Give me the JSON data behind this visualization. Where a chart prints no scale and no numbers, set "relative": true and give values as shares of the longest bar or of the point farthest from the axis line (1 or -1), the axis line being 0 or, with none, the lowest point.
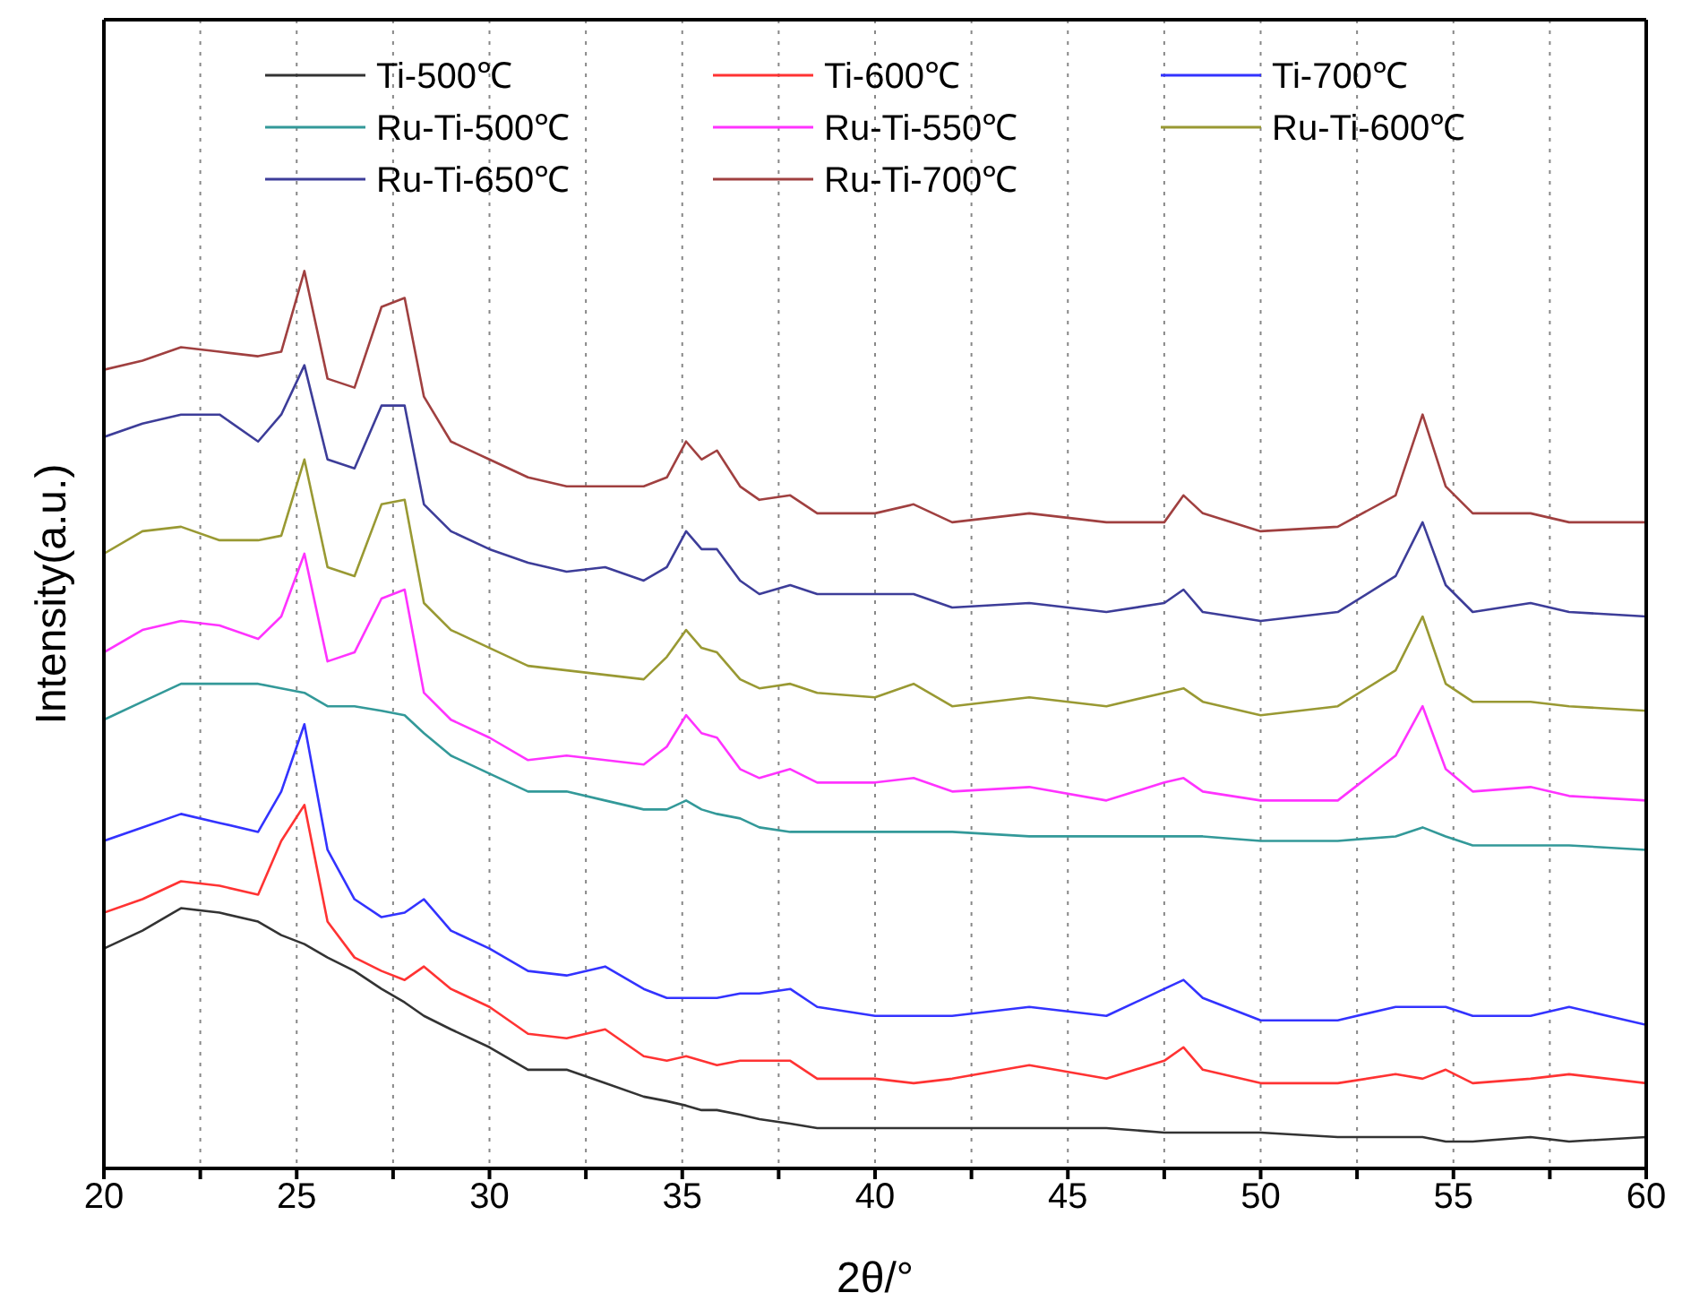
{
  "chart_data": {
    "type": "line",
    "relative": true,
    "xlabel": "2θ/°",
    "ylabel": "Intensity(a.u.)",
    "x": [
      20,
      21,
      22,
      23,
      24,
      24.6,
      25.2,
      25.8,
      26.5,
      27.2,
      27.8,
      28.3,
      29,
      30,
      31,
      32,
      33,
      34,
      34.6,
      35.1,
      35.5,
      35.9,
      36.5,
      37,
      37.8,
      38.5,
      40,
      41,
      42,
      44,
      46,
      47.5,
      48,
      48.5,
      50,
      52,
      53.5,
      54.2,
      54.8,
      55.5,
      57,
      58,
      60
    ],
    "xlim": [
      20,
      60
    ],
    "xticks": [
      20,
      {
        "value": 22.5,
        "label": null
      },
      25,
      {
        "value": 27.5,
        "label": null
      },
      30,
      {
        "value": 32.5,
        "label": null
      },
      35,
      {
        "value": 37.5,
        "label": null
      },
      40,
      {
        "value": 42.5,
        "label": null
      },
      45,
      {
        "value": 47.5,
        "label": null
      },
      50,
      {
        "value": 52.5,
        "label": null
      },
      55,
      {
        "value": 57.5,
        "label": null
      },
      60
    ],
    "grid": "x",
    "legend": "top",
    "series": [
      {
        "name": "Ti-500℃",
        "color": "#333333",
        "values": [
          0.245,
          0.265,
          0.29,
          0.285,
          0.275,
          0.26,
          0.25,
          0.235,
          0.22,
          0.2,
          0.185,
          0.17,
          0.155,
          0.135,
          0.11,
          0.11,
          0.095,
          0.08,
          0.075,
          0.07,
          0.065,
          0.065,
          0.06,
          0.055,
          0.05,
          0.045,
          0.045,
          0.045,
          0.045,
          0.045,
          0.045,
          0.04,
          0.04,
          0.04,
          0.04,
          0.035,
          0.035,
          0.035,
          0.03,
          0.03,
          0.035,
          0.03,
          0.035
        ]
      },
      {
        "name": "Ti-600℃",
        "color": "#ff3333",
        "values": [
          0.285,
          0.3,
          0.32,
          0.315,
          0.305,
          0.365,
          0.405,
          0.275,
          0.235,
          0.22,
          0.21,
          0.225,
          0.2,
          0.18,
          0.15,
          0.145,
          0.155,
          0.125,
          0.12,
          0.125,
          0.12,
          0.115,
          0.12,
          0.12,
          0.12,
          0.1,
          0.1,
          0.095,
          0.1,
          0.115,
          0.1,
          0.12,
          0.135,
          0.11,
          0.095,
          0.095,
          0.105,
          0.1,
          0.11,
          0.095,
          0.1,
          0.105,
          0.095
        ]
      },
      {
        "name": "Ti-700℃",
        "color": "#3333ff",
        "values": [
          0.365,
          0.38,
          0.395,
          0.385,
          0.375,
          0.42,
          0.495,
          0.355,
          0.3,
          0.28,
          0.285,
          0.3,
          0.265,
          0.245,
          0.22,
          0.215,
          0.225,
          0.2,
          0.19,
          0.19,
          0.19,
          0.19,
          0.195,
          0.195,
          0.2,
          0.18,
          0.17,
          0.17,
          0.17,
          0.18,
          0.17,
          0.2,
          0.21,
          0.19,
          0.165,
          0.165,
          0.18,
          0.18,
          0.18,
          0.17,
          0.17,
          0.18,
          0.16
        ]
      },
      {
        "name": "Ru-Ti-500℃",
        "color": "#339999",
        "values": [
          0.5,
          0.52,
          0.54,
          0.54,
          0.54,
          0.535,
          0.53,
          0.515,
          0.515,
          0.51,
          0.505,
          0.485,
          0.46,
          0.44,
          0.42,
          0.42,
          0.41,
          0.4,
          0.4,
          0.41,
          0.4,
          0.395,
          0.39,
          0.38,
          0.375,
          0.375,
          0.375,
          0.375,
          0.375,
          0.37,
          0.37,
          0.37,
          0.37,
          0.37,
          0.365,
          0.365,
          0.37,
          0.38,
          0.37,
          0.36,
          0.36,
          0.36,
          0.355
        ]
      },
      {
        "name": "Ru-Ti-550℃",
        "color": "#ff33ff",
        "values": [
          0.575,
          0.6,
          0.61,
          0.605,
          0.59,
          0.615,
          0.685,
          0.565,
          0.575,
          0.635,
          0.645,
          0.53,
          0.5,
          0.48,
          0.455,
          0.46,
          0.455,
          0.45,
          0.47,
          0.505,
          0.485,
          0.48,
          0.445,
          0.435,
          0.445,
          0.43,
          0.43,
          0.435,
          0.42,
          0.425,
          0.41,
          0.43,
          0.435,
          0.42,
          0.41,
          0.41,
          0.46,
          0.515,
          0.445,
          0.42,
          0.425,
          0.415,
          0.41
        ]
      },
      {
        "name": "Ru-Ti-600℃",
        "color": "#999933",
        "values": [
          0.685,
          0.71,
          0.715,
          0.7,
          0.7,
          0.705,
          0.79,
          0.67,
          0.66,
          0.74,
          0.745,
          0.63,
          0.6,
          0.58,
          0.56,
          0.555,
          0.55,
          0.545,
          0.57,
          0.6,
          0.58,
          0.575,
          0.545,
          0.535,
          0.54,
          0.53,
          0.525,
          0.54,
          0.515,
          0.525,
          0.515,
          0.53,
          0.535,
          0.52,
          0.505,
          0.515,
          0.555,
          0.615,
          0.54,
          0.52,
          0.52,
          0.515,
          0.51
        ]
      },
      {
        "name": "Ru-Ti-650℃",
        "color": "#3d3d99",
        "values": [
          0.815,
          0.83,
          0.84,
          0.84,
          0.81,
          0.84,
          0.895,
          0.79,
          0.78,
          0.85,
          0.85,
          0.74,
          0.71,
          0.69,
          0.675,
          0.665,
          0.67,
          0.655,
          0.67,
          0.71,
          0.69,
          0.69,
          0.655,
          0.64,
          0.65,
          0.64,
          0.64,
          0.64,
          0.625,
          0.63,
          0.62,
          0.63,
          0.645,
          0.62,
          0.61,
          0.62,
          0.66,
          0.72,
          0.65,
          0.62,
          0.63,
          0.62,
          0.615
        ]
      },
      {
        "name": "Ru-Ti-700℃",
        "color": "#a04040",
        "values": [
          0.89,
          0.9,
          0.915,
          0.91,
          0.905,
          0.91,
          1,
          0.88,
          0.87,
          0.96,
          0.97,
          0.86,
          0.81,
          0.79,
          0.77,
          0.76,
          0.76,
          0.76,
          0.77,
          0.81,
          0.79,
          0.8,
          0.76,
          0.745,
          0.75,
          0.73,
          0.73,
          0.74,
          0.72,
          0.73,
          0.72,
          0.72,
          0.75,
          0.73,
          0.71,
          0.715,
          0.75,
          0.84,
          0.76,
          0.73,
          0.73,
          0.72,
          0.72
        ]
      }
    ]
  }
}
